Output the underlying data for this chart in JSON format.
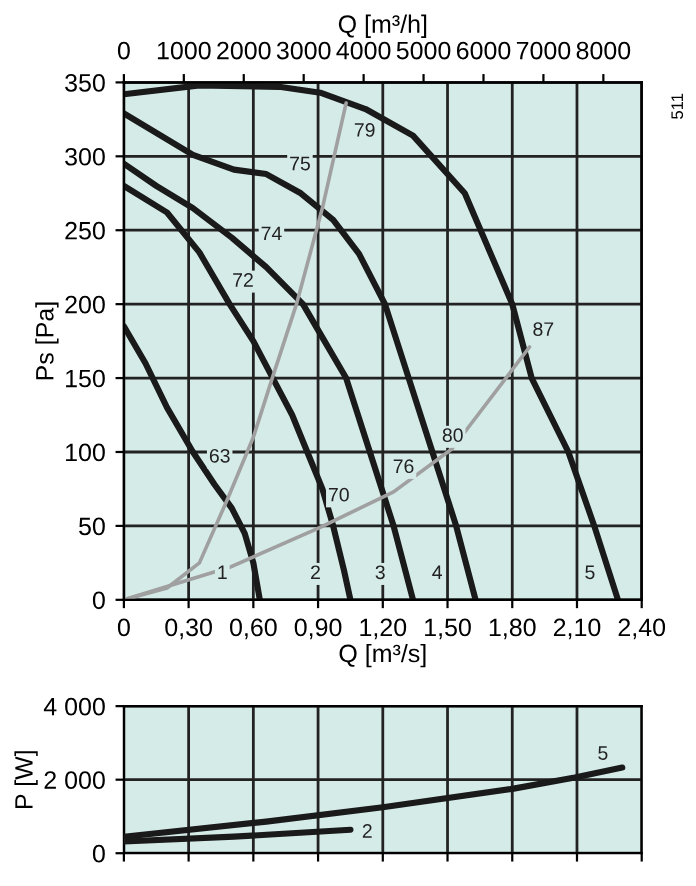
{
  "chart_data": [
    {
      "type": "line",
      "xlabel": "Q [m³/s]",
      "x2label": "Q [m³/h]",
      "ylabel": "Ps [Pa]",
      "xlim": [
        0,
        2.4
      ],
      "xticks": [
        0,
        {
          "value": 0.3,
          "label": "0,30"
        },
        {
          "value": 0.6,
          "label": "0,60"
        },
        {
          "value": 0.9,
          "label": "0,90"
        },
        {
          "value": 1.2,
          "label": "1,20"
        },
        {
          "value": 1.5,
          "label": "1,50"
        },
        {
          "value": 1.8,
          "label": "1,80"
        },
        {
          "value": 2.1,
          "label": "2,10"
        },
        {
          "value": 2.4,
          "label": "2,40"
        }
      ],
      "x2lim": [
        0,
        8640
      ],
      "x2ticks": [
        0,
        1000,
        2000,
        3000,
        4000,
        5000,
        6000,
        7000,
        8000
      ],
      "ylim": [
        0,
        350
      ],
      "yticks": [
        0,
        50,
        100,
        150,
        200,
        250,
        300,
        350
      ],
      "grid": true,
      "series": [
        {
          "color": "#1a1a1a",
          "x": [
            0,
            0.1,
            0.2,
            0.32,
            0.42,
            0.5,
            0.56,
            0.6,
            0.63
          ],
          "values": [
            185,
            160,
            130,
            100,
            78,
            62,
            45,
            25,
            0
          ]
        },
        {
          "color": "#1a1a1a",
          "x": [
            0,
            0.2,
            0.35,
            0.49,
            0.6,
            0.69,
            0.78,
            0.85,
            0.92,
            0.97,
            1.02,
            1.05
          ],
          "values": [
            280,
            262,
            235,
            200,
            175,
            150,
            125,
            100,
            75,
            50,
            20,
            0
          ]
        },
        {
          "color": "#1a1a1a",
          "x": [
            0,
            0.15,
            0.32,
            0.5,
            0.66,
            0.83,
            0.93,
            1.03,
            1.14,
            1.25,
            1.34
          ],
          "values": [
            295,
            280,
            265,
            245,
            225,
            200,
            175,
            150,
            100,
            50,
            0
          ]
        },
        {
          "color": "#1a1a1a",
          "x": [
            0,
            0.32,
            0.51,
            0.66,
            0.82,
            0.97,
            1.09,
            1.21,
            1.32,
            1.43,
            1.54,
            1.63
          ],
          "values": [
            329,
            301,
            291,
            288,
            275,
            257,
            234,
            200,
            150,
            100,
            50,
            0
          ]
        },
        {
          "color": "#1a1a1a",
          "x": [
            0,
            0.35,
            0.72,
            0.91,
            1.12,
            1.34,
            1.58,
            1.8,
            1.89,
            2.06,
            2.18,
            2.29
          ],
          "values": [
            342,
            348,
            347,
            343,
            332,
            314,
            275,
            200,
            150,
            100,
            50,
            0
          ]
        },
        {
          "color": "#a0a0a0",
          "x": [
            0,
            0.2,
            0.35,
            0.48,
            0.6,
            0.69,
            0.8,
            0.92,
            1.03
          ],
          "values": [
            0,
            8,
            25,
            68,
            110,
            151,
            200,
            265,
            336
          ]
        },
        {
          "color": "#a0a0a0",
          "x": [
            0,
            0.49,
            0.91,
            1.25,
            1.52,
            1.88
          ],
          "values": [
            0,
            22,
            49,
            73,
            102,
            171
          ]
        }
      ],
      "annotations": [
        "79",
        "75",
        "74",
        "72",
        "63",
        "70",
        "76",
        "80",
        "87",
        "1",
        "2",
        "3",
        "4",
        "5",
        "511"
      ]
    },
    {
      "type": "line",
      "ylabel": "P [W]",
      "xlim": [
        0,
        2.4
      ],
      "xticks": [
        {
          "value": 0,
          "label": null
        },
        {
          "value": 0.3,
          "label": null
        },
        {
          "value": 0.6,
          "label": null
        },
        {
          "value": 0.9,
          "label": null
        },
        {
          "value": 1.2,
          "label": null
        },
        {
          "value": 1.5,
          "label": null
        },
        {
          "value": 1.8,
          "label": null
        },
        {
          "value": 2.1,
          "label": null
        },
        {
          "value": 2.4,
          "label": null
        }
      ],
      "ylim": [
        0,
        4000
      ],
      "yticks": [
        {
          "value": 0,
          "label": "0"
        },
        {
          "value": 2000,
          "label": "2 000"
        },
        {
          "value": 4000,
          "label": "4 000"
        }
      ],
      "grid": true,
      "tick_labels": "y",
      "series": [
        {
          "color": "#1a1a1a",
          "x": [
            0,
            0.66,
            1.2,
            1.8,
            2.09,
            2.31
          ],
          "values": [
            450,
            860,
            1250,
            1750,
            2060,
            2330
          ]
        },
        {
          "color": "#1a1a1a",
          "x": [
            0,
            0.51,
            1.05
          ],
          "values": [
            320,
            450,
            640
          ]
        }
      ],
      "annotations": [
        "2",
        "5"
      ]
    }
  ]
}
